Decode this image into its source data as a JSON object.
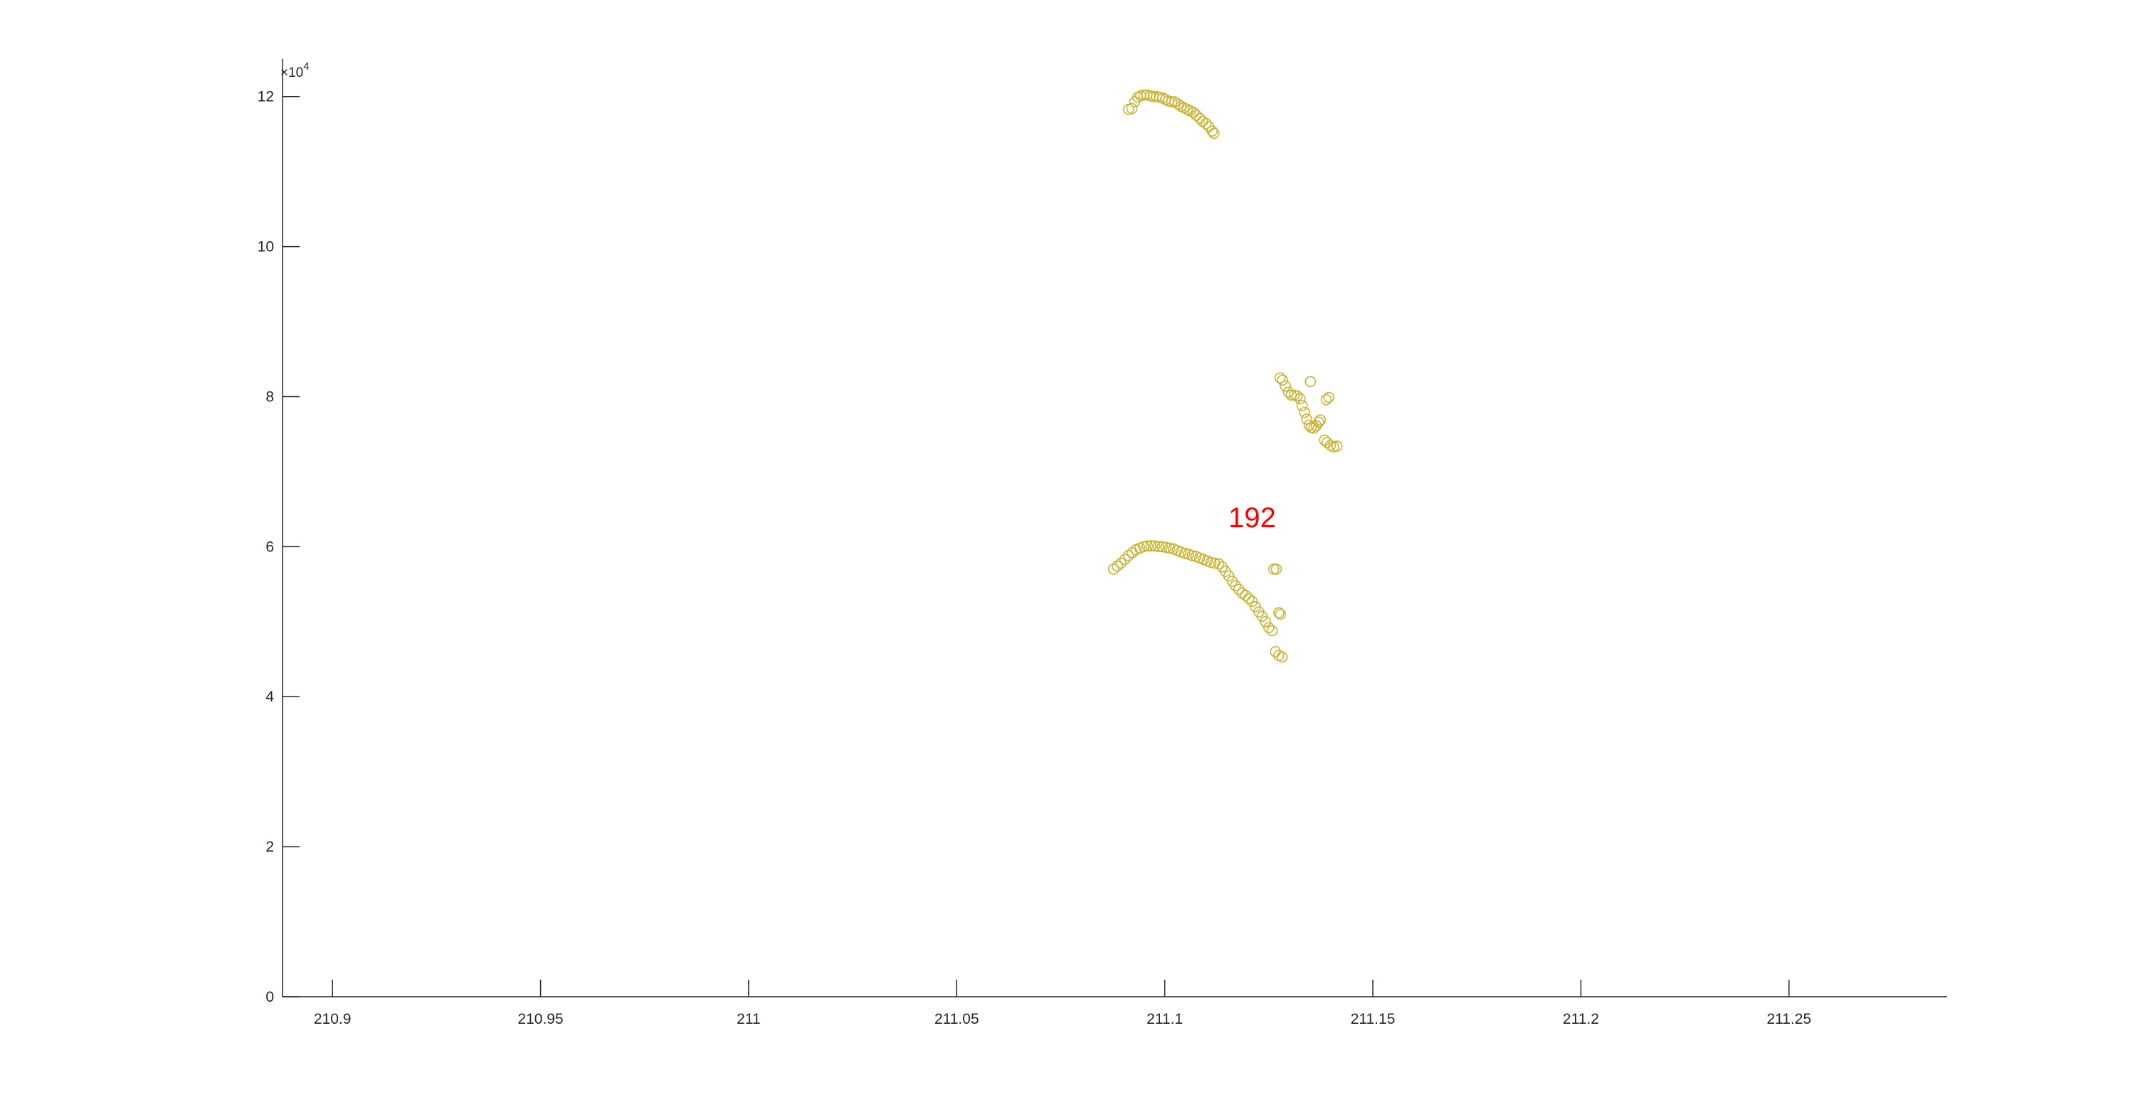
{
  "chart_data": {
    "type": "scatter",
    "title": "",
    "xlabel": "",
    "ylabel": "",
    "xlim": [
      210.888,
      211.288
    ],
    "ylim": [
      0,
      125000
    ],
    "x_ticks": [
      210.9,
      210.95,
      211,
      211.05,
      211.1,
      211.15,
      211.2,
      211.25
    ],
    "x_tick_labels": [
      "210.9",
      "210.95",
      "211",
      "211.05",
      "211.1",
      "211.15",
      "211.2",
      "211.25"
    ],
    "y_ticks": [
      0,
      20000,
      40000,
      60000,
      80000,
      100000,
      120000
    ],
    "y_tick_labels": [
      "0",
      "2",
      "4",
      "6",
      "8",
      "10",
      "12"
    ],
    "y_exponent_label": {
      "base": "×10",
      "exp": "4"
    },
    "grid": false,
    "marker": "circle-open",
    "marker_color": "#C8B432",
    "annotation": {
      "text": "192",
      "x": 211.121,
      "y": 62600,
      "color": "#FF0000"
    },
    "points": [
      [
        211.0913,
        118300
      ],
      [
        211.0921,
        118400
      ],
      [
        211.0928,
        119300
      ],
      [
        211.0935,
        119900
      ],
      [
        211.0942,
        120100
      ],
      [
        211.095,
        120200
      ],
      [
        211.0957,
        120200
      ],
      [
        211.0965,
        120100
      ],
      [
        211.0972,
        120000
      ],
      [
        211.098,
        120000
      ],
      [
        211.0987,
        119900
      ],
      [
        211.0995,
        119800
      ],
      [
        211.1002,
        119600
      ],
      [
        211.1009,
        119400
      ],
      [
        211.1017,
        119300
      ],
      [
        211.1024,
        119300
      ],
      [
        211.1032,
        119000
      ],
      [
        211.1039,
        118700
      ],
      [
        211.1046,
        118500
      ],
      [
        211.1054,
        118300
      ],
      [
        211.1061,
        118100
      ],
      [
        211.1069,
        117900
      ],
      [
        211.1076,
        117500
      ],
      [
        211.1084,
        117100
      ],
      [
        211.1091,
        116700
      ],
      [
        211.1099,
        116400
      ],
      [
        211.1106,
        116000
      ],
      [
        211.1114,
        115400
      ],
      [
        211.1118,
        115100
      ],
      [
        211.0877,
        57000
      ],
      [
        211.0886,
        57400
      ],
      [
        211.0895,
        57800
      ],
      [
        211.0904,
        58300
      ],
      [
        211.0913,
        58800
      ],
      [
        211.0922,
        59200
      ],
      [
        211.0931,
        59600
      ],
      [
        211.094,
        59800
      ],
      [
        211.0949,
        60000
      ],
      [
        211.0958,
        60100
      ],
      [
        211.0967,
        60100
      ],
      [
        211.0976,
        60100
      ],
      [
        211.0985,
        60000
      ],
      [
        211.0994,
        60000
      ],
      [
        211.1003,
        59900
      ],
      [
        211.1012,
        59800
      ],
      [
        211.1021,
        59700
      ],
      [
        211.103,
        59500
      ],
      [
        211.1039,
        59300
      ],
      [
        211.1048,
        59100
      ],
      [
        211.1057,
        59000
      ],
      [
        211.1066,
        58800
      ],
      [
        211.1075,
        58700
      ],
      [
        211.1084,
        58500
      ],
      [
        211.1093,
        58300
      ],
      [
        211.1102,
        58100
      ],
      [
        211.1111,
        57900
      ],
      [
        211.112,
        57800
      ],
      [
        211.113,
        57700
      ],
      [
        211.1138,
        57300
      ],
      [
        211.1146,
        56700
      ],
      [
        211.1154,
        56100
      ],
      [
        211.1162,
        55400
      ],
      [
        211.117,
        54800
      ],
      [
        211.1178,
        54300
      ],
      [
        211.1186,
        53800
      ],
      [
        211.1194,
        53500
      ],
      [
        211.1202,
        53100
      ],
      [
        211.121,
        52700
      ],
      [
        211.1218,
        52000
      ],
      [
        211.1226,
        51300
      ],
      [
        211.1234,
        50700
      ],
      [
        211.1242,
        50000
      ],
      [
        211.125,
        49200
      ],
      [
        211.1258,
        48800
      ],
      [
        211.1262,
        57000
      ],
      [
        211.1268,
        57000
      ],
      [
        211.1274,
        51200
      ],
      [
        211.1278,
        51000
      ],
      [
        211.1266,
        46000
      ],
      [
        211.1274,
        45500
      ],
      [
        211.1282,
        45300
      ],
      [
        211.1277,
        82500
      ],
      [
        211.1283,
        82200
      ],
      [
        211.129,
        81400
      ],
      [
        211.1297,
        80600
      ],
      [
        211.1304,
        80200
      ],
      [
        211.1311,
        80200
      ],
      [
        211.1318,
        80100
      ],
      [
        211.1325,
        79700
      ],
      [
        211.133,
        78800
      ],
      [
        211.1336,
        77900
      ],
      [
        211.1341,
        77000
      ],
      [
        211.1347,
        76200
      ],
      [
        211.1352,
        75900
      ],
      [
        211.1358,
        75800
      ],
      [
        211.1364,
        76100
      ],
      [
        211.137,
        76600
      ],
      [
        211.1374,
        76900
      ],
      [
        211.135,
        82000
      ],
      [
        211.1388,
        79600
      ],
      [
        211.1394,
        79900
      ],
      [
        211.1384,
        74200
      ],
      [
        211.139,
        73900
      ],
      [
        211.1398,
        73500
      ],
      [
        211.1406,
        73300
      ],
      [
        211.1414,
        73400
      ]
    ]
  }
}
